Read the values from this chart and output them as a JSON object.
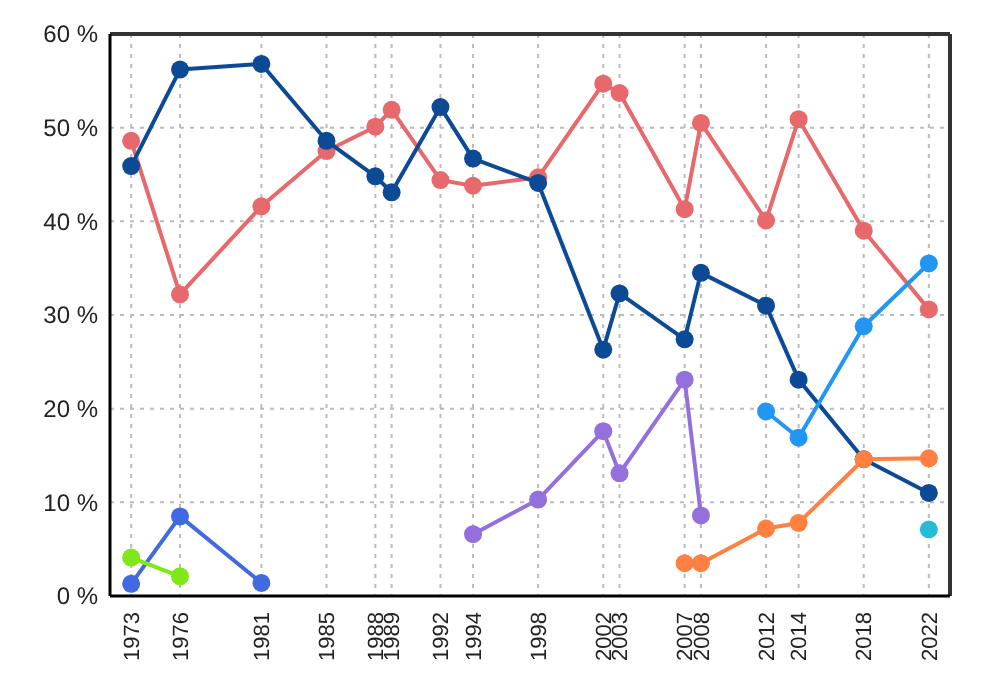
{
  "chart_data": {
    "type": "line",
    "marker": "circle",
    "line_style": "solid",
    "grid": true,
    "xlim": [
      1971.7,
      2023.3
    ],
    "ylim": [
      0,
      60
    ],
    "xticks": [
      1973,
      1976,
      1981,
      1985,
      1988,
      1989,
      1992,
      1994,
      1998,
      2002,
      2003,
      2007,
      2008,
      2012,
      2014,
      2018,
      2022
    ],
    "yticks": [
      {
        "value": 0,
        "label": "0 %"
      },
      {
        "value": 10,
        "label": "10 %"
      },
      {
        "value": 20,
        "label": "20 %"
      },
      {
        "value": 30,
        "label": "30 %"
      },
      {
        "value": 40,
        "label": "40 %"
      },
      {
        "value": 50,
        "label": "50 %"
      },
      {
        "value": 60,
        "label": "60 %"
      }
    ],
    "series": [
      {
        "color": "#e8696b",
        "x": [
          1973,
          1976,
          1981,
          1985,
          1988,
          1989,
          1992,
          1994,
          1998,
          2002,
          2003,
          2007,
          2008,
          2012,
          2014,
          2018,
          2022
        ],
        "values": [
          48.6,
          32.2,
          41.6,
          47.5,
          50.1,
          51.9,
          44.4,
          43.8,
          44.7,
          54.7,
          53.7,
          41.3,
          50.5,
          40.1,
          50.9,
          39.0,
          30.6
        ]
      },
      {
        "color": "#0d4a96",
        "x": [
          1973,
          1976,
          1981,
          1985,
          1988,
          1989,
          1992,
          1994,
          1998,
          2002,
          2003,
          2007,
          2008,
          2012,
          2014,
          2018,
          2022
        ],
        "values": [
          45.9,
          56.2,
          56.8,
          48.6,
          44.8,
          43.1,
          52.2,
          46.7,
          44.1,
          26.3,
          32.3,
          27.4,
          34.5,
          31.0,
          23.1,
          14.6,
          11.0
        ]
      },
      {
        "color": "#4169e1",
        "x": [
          1973,
          1976,
          1981
        ],
        "values": [
          1.3,
          8.5,
          1.4
        ]
      },
      {
        "color": "#7fe817",
        "x": [
          1973,
          1976
        ],
        "values": [
          4.1,
          2.1
        ]
      },
      {
        "color": "#9370db",
        "x": [
          1994,
          1998,
          2002,
          2003,
          2007,
          2008
        ],
        "values": [
          6.6,
          10.3,
          17.6,
          13.1,
          23.1,
          8.6
        ]
      },
      {
        "color": "#ff8040",
        "x": [
          2007,
          2008,
          2012,
          2014,
          2018,
          2022
        ],
        "values": [
          3.5,
          3.5,
          7.2,
          7.8,
          14.6,
          14.7
        ]
      },
      {
        "color": "#2196f3",
        "x": [
          2012,
          2014,
          2018,
          2022
        ],
        "values": [
          19.7,
          16.9,
          28.8,
          35.5
        ]
      },
      {
        "color": "#26bcd7",
        "x": [
          2022
        ],
        "values": [
          7.1
        ]
      }
    ]
  }
}
